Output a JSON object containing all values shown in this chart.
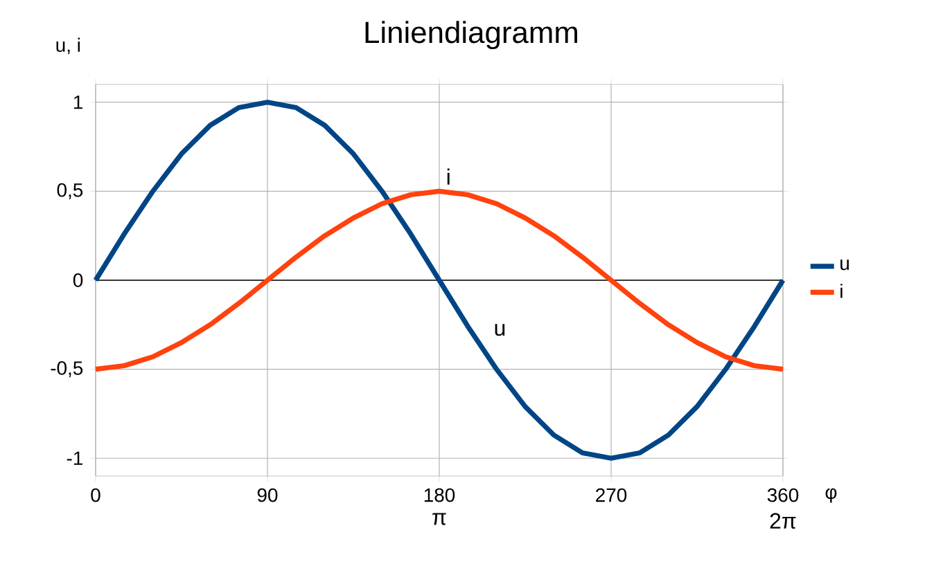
{
  "chart_data": {
    "type": "line",
    "title": "Liniendiagramm",
    "xlabel": "φ",
    "ylabel": "u, i",
    "x": [
      0,
      15,
      30,
      45,
      60,
      75,
      90,
      105,
      120,
      135,
      150,
      165,
      180,
      195,
      210,
      225,
      240,
      255,
      270,
      285,
      300,
      315,
      330,
      345,
      360
    ],
    "series": [
      {
        "name": "u",
        "color": "#004586",
        "values": [
          0,
          0.26,
          0.5,
          0.71,
          0.87,
          0.97,
          1,
          0.97,
          0.87,
          0.71,
          0.5,
          0.26,
          0,
          -0.26,
          -0.5,
          -0.71,
          -0.87,
          -0.97,
          -1,
          -0.97,
          -0.87,
          -0.71,
          -0.5,
          -0.26,
          0
        ]
      },
      {
        "name": "i",
        "color": "#ff420e",
        "values": [
          -0.5,
          -0.48,
          -0.43,
          -0.35,
          -0.25,
          -0.13,
          0,
          0.13,
          0.25,
          0.35,
          0.43,
          0.48,
          0.5,
          0.48,
          0.43,
          0.35,
          0.25,
          0.13,
          0,
          -0.13,
          -0.25,
          -0.35,
          -0.43,
          -0.48,
          -0.5
        ]
      }
    ],
    "xlim": [
      0,
      360
    ],
    "xticks": [
      0,
      90,
      180,
      270,
      360
    ],
    "x2lim": [
      0,
      6.2832
    ],
    "x2ticks": [
      {
        "value": 3.1416,
        "label": "π"
      },
      {
        "value": 6.2832,
        "label": "2π"
      }
    ],
    "ylim": [
      -1.1,
      1.1
    ],
    "yticks": [
      {
        "value": -1,
        "label": "-1"
      },
      {
        "value": -0.5,
        "label": "-0,5"
      },
      {
        "value": 0,
        "label": "0"
      },
      {
        "value": 0.5,
        "label": "0,5"
      },
      {
        "value": 1,
        "label": "1"
      }
    ],
    "ref_lines": [
      {
        "axis": "y",
        "value": 0,
        "color": "#000000"
      }
    ],
    "annotations": [
      {
        "text": "i",
        "x": 180,
        "y": 0.5
      },
      {
        "text": "u",
        "x": 205,
        "y": -0.35
      }
    ],
    "grid": true,
    "legend": "right",
    "marker": "none",
    "line_style": "solid"
  }
}
